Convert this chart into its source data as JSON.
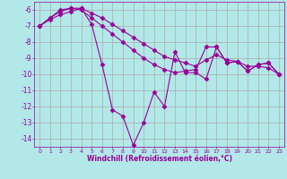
{
  "x": [
    0,
    1,
    2,
    3,
    4,
    5,
    6,
    7,
    8,
    9,
    10,
    11,
    12,
    13,
    14,
    15,
    16,
    17,
    18,
    19,
    20,
    21,
    22,
    23
  ],
  "line1": [
    -7.0,
    -6.5,
    -6.1,
    -5.9,
    -5.9,
    -6.9,
    -9.4,
    -12.2,
    -12.6,
    -14.4,
    -13.0,
    -11.1,
    -12.0,
    -8.6,
    -9.9,
    -9.9,
    -10.3,
    -8.3,
    -9.3,
    -9.2,
    -9.8,
    -9.4,
    -9.3,
    -10.0
  ],
  "line2": [
    -7.0,
    -6.5,
    -6.0,
    -5.9,
    -6.0,
    -6.5,
    -7.0,
    -7.5,
    -8.0,
    -8.5,
    -9.0,
    -9.4,
    -9.7,
    -9.9,
    -9.8,
    -9.7,
    -8.3,
    -8.3,
    -9.3,
    -9.2,
    -9.8,
    -9.4,
    -9.3,
    -10.0
  ],
  "line3": [
    -7.0,
    -6.6,
    -6.3,
    -6.1,
    -5.9,
    -6.2,
    -6.5,
    -6.9,
    -7.3,
    -7.7,
    -8.1,
    -8.5,
    -8.9,
    -9.1,
    -9.3,
    -9.5,
    -9.1,
    -8.8,
    -9.1,
    -9.2,
    -9.5,
    -9.5,
    -9.6,
    -10.0
  ],
  "color": "#990099",
  "bg_color": "#b2e8e8",
  "grid_color": "#aaaaaa",
  "xlabel": "Windchill (Refroidissement éolien,°C)",
  "xlim": [
    -0.5,
    23.5
  ],
  "ylim": [
    -14.5,
    -5.5
  ],
  "yticks": [
    -6,
    -7,
    -8,
    -9,
    -10,
    -11,
    -12,
    -13,
    -14
  ],
  "xticks": [
    0,
    1,
    2,
    3,
    4,
    5,
    6,
    7,
    8,
    9,
    10,
    11,
    12,
    13,
    14,
    15,
    16,
    17,
    18,
    19,
    20,
    21,
    22,
    23
  ],
  "marker": "D",
  "markersize": 2.5
}
